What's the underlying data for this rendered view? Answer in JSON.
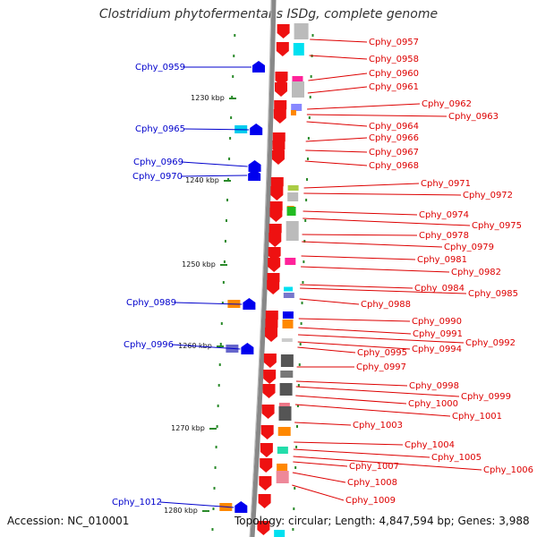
{
  "title": "Clostridium phytofermentans ISDg, complete genome",
  "footer": {
    "accession": "Accession: NC_010001",
    "info": "Topology: circular; Length: 4,847,594 bp; Genes: 3,988"
  },
  "colors": {
    "forward_label": "#0000cc",
    "reverse_label": "#dd0000",
    "backbone": "#888888",
    "kbp_dots": "#2a8a2a"
  },
  "kbp_marks": [
    "1230 kbp",
    "1240 kbp",
    "1250 kbp",
    "1260 kbp",
    "1270 kbp",
    "1280 kbp"
  ],
  "forward_genes": [
    "Cphy_0959",
    "Cphy_0965",
    "Cphy_0969",
    "Cphy_0970",
    "Cphy_0989",
    "Cphy_0996",
    "Cphy_1012"
  ],
  "reverse_genes": [
    "Cphy_0957",
    "Cphy_0958",
    "Cphy_0960",
    "Cphy_0961",
    "Cphy_0962",
    "Cphy_0963",
    "Cphy_0964",
    "Cphy_0966",
    "Cphy_0967",
    "Cphy_0968",
    "Cphy_0971",
    "Cphy_0972",
    "Cphy_0974",
    "Cphy_0975",
    "Cphy_0978",
    "Cphy_0979",
    "Cphy_0981",
    "Cphy_0982",
    "Cphy_0984",
    "Cphy_0985",
    "Cphy_0988",
    "Cphy_0990",
    "Cphy_0991",
    "Cphy_0992",
    "Cphy_0994",
    "Cphy_0995",
    "Cphy_0997",
    "Cphy_0998",
    "Cphy_0999",
    "Cphy_1000",
    "Cphy_1001",
    "Cphy_1003",
    "Cphy_1004",
    "Cphy_1005",
    "Cphy_1006",
    "Cphy_1007",
    "Cphy_1008",
    "Cphy_1009"
  ]
}
